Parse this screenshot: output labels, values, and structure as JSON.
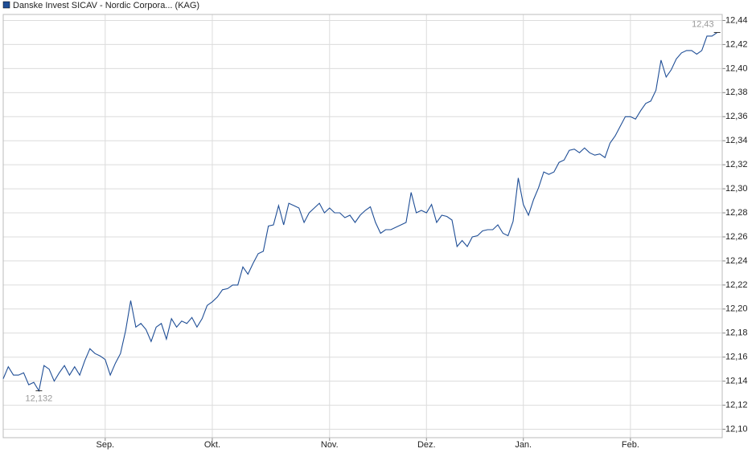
{
  "chart_data": {
    "type": "line",
    "series": [
      {
        "name": "Danske Invest SICAV - Nordic Corpora... (KAG)",
        "color": "#1f4e96",
        "values": [
          12.142,
          12.152,
          12.145,
          12.145,
          12.147,
          12.137,
          12.139,
          12.132,
          12.153,
          12.15,
          12.14,
          12.147,
          12.153,
          12.145,
          12.152,
          12.145,
          12.157,
          12.167,
          12.163,
          12.161,
          12.158,
          12.145,
          12.155,
          12.163,
          12.182,
          12.207,
          12.185,
          12.188,
          12.183,
          12.173,
          12.185,
          12.188,
          12.175,
          12.192,
          12.185,
          12.19,
          12.188,
          12.193,
          12.185,
          12.192,
          12.203,
          12.206,
          12.21,
          12.216,
          12.217,
          12.22,
          12.22,
          12.235,
          12.229,
          12.238,
          12.246,
          12.248,
          12.269,
          12.27,
          12.286,
          12.27,
          12.288,
          12.286,
          12.284,
          12.272,
          12.28,
          12.284,
          12.288,
          12.28,
          12.284,
          12.28,
          12.28,
          12.276,
          12.278,
          12.272,
          12.278,
          12.282,
          12.285,
          12.272,
          12.263,
          12.266,
          12.266,
          12.268,
          12.27,
          12.272,
          12.297,
          12.28,
          12.282,
          12.28,
          12.287,
          12.272,
          12.278,
          12.277,
          12.274,
          12.252,
          12.257,
          12.252,
          12.26,
          12.261,
          12.265,
          12.266,
          12.266,
          12.27,
          12.263,
          12.261,
          12.273,
          12.309,
          12.287,
          12.278,
          12.291,
          12.301,
          12.314,
          12.312,
          12.314,
          12.322,
          12.324,
          12.332,
          12.333,
          12.33,
          12.334,
          12.33,
          12.328,
          12.329,
          12.326,
          12.338,
          12.344,
          12.352,
          12.36,
          12.36,
          12.358,
          12.365,
          12.371,
          12.373,
          12.382,
          12.407,
          12.393,
          12.399,
          12.408,
          12.413,
          12.415,
          12.415,
          12.412,
          12.415,
          12.427,
          12.427,
          12.43
        ]
      }
    ],
    "xlim": [
      0,
      141
    ],
    "xticks": [
      {
        "value": 20,
        "label": "Sep."
      },
      {
        "value": 41,
        "label": "Okt."
      },
      {
        "value": 64,
        "label": "Nov."
      },
      {
        "value": 83,
        "label": "Dez."
      },
      {
        "value": 102,
        "label": "Jan."
      },
      {
        "value": 123,
        "label": "Feb."
      }
    ],
    "ylim": [
      12.093,
      12.445
    ],
    "yticks": [
      {
        "value": 12.1,
        "label": "12,10"
      },
      {
        "value": 12.12,
        "label": "12,12"
      },
      {
        "value": 12.14,
        "label": "12,14"
      },
      {
        "value": 12.16,
        "label": "12,16"
      },
      {
        "value": 12.18,
        "label": "12,18"
      },
      {
        "value": 12.2,
        "label": "12,20"
      },
      {
        "value": 12.22,
        "label": "12,22"
      },
      {
        "value": 12.24,
        "label": "12,24"
      },
      {
        "value": 12.26,
        "label": "12,26"
      },
      {
        "value": 12.28,
        "label": "12,28"
      },
      {
        "value": 12.3,
        "label": "12,30"
      },
      {
        "value": 12.32,
        "label": "12,32"
      },
      {
        "value": 12.34,
        "label": "12,34"
      },
      {
        "value": 12.36,
        "label": "12,36"
      },
      {
        "value": 12.38,
        "label": "12,38"
      },
      {
        "value": 12.4,
        "label": "12,40"
      },
      {
        "value": 12.42,
        "label": "12,42"
      },
      {
        "value": 12.44,
        "label": "12,44"
      }
    ],
    "annotations": [
      {
        "label": "12,43",
        "index": 140,
        "value": 12.43,
        "position": "above"
      },
      {
        "label": "12,132",
        "index": 7,
        "value": 12.132,
        "position": "below"
      }
    ],
    "grid": true
  }
}
